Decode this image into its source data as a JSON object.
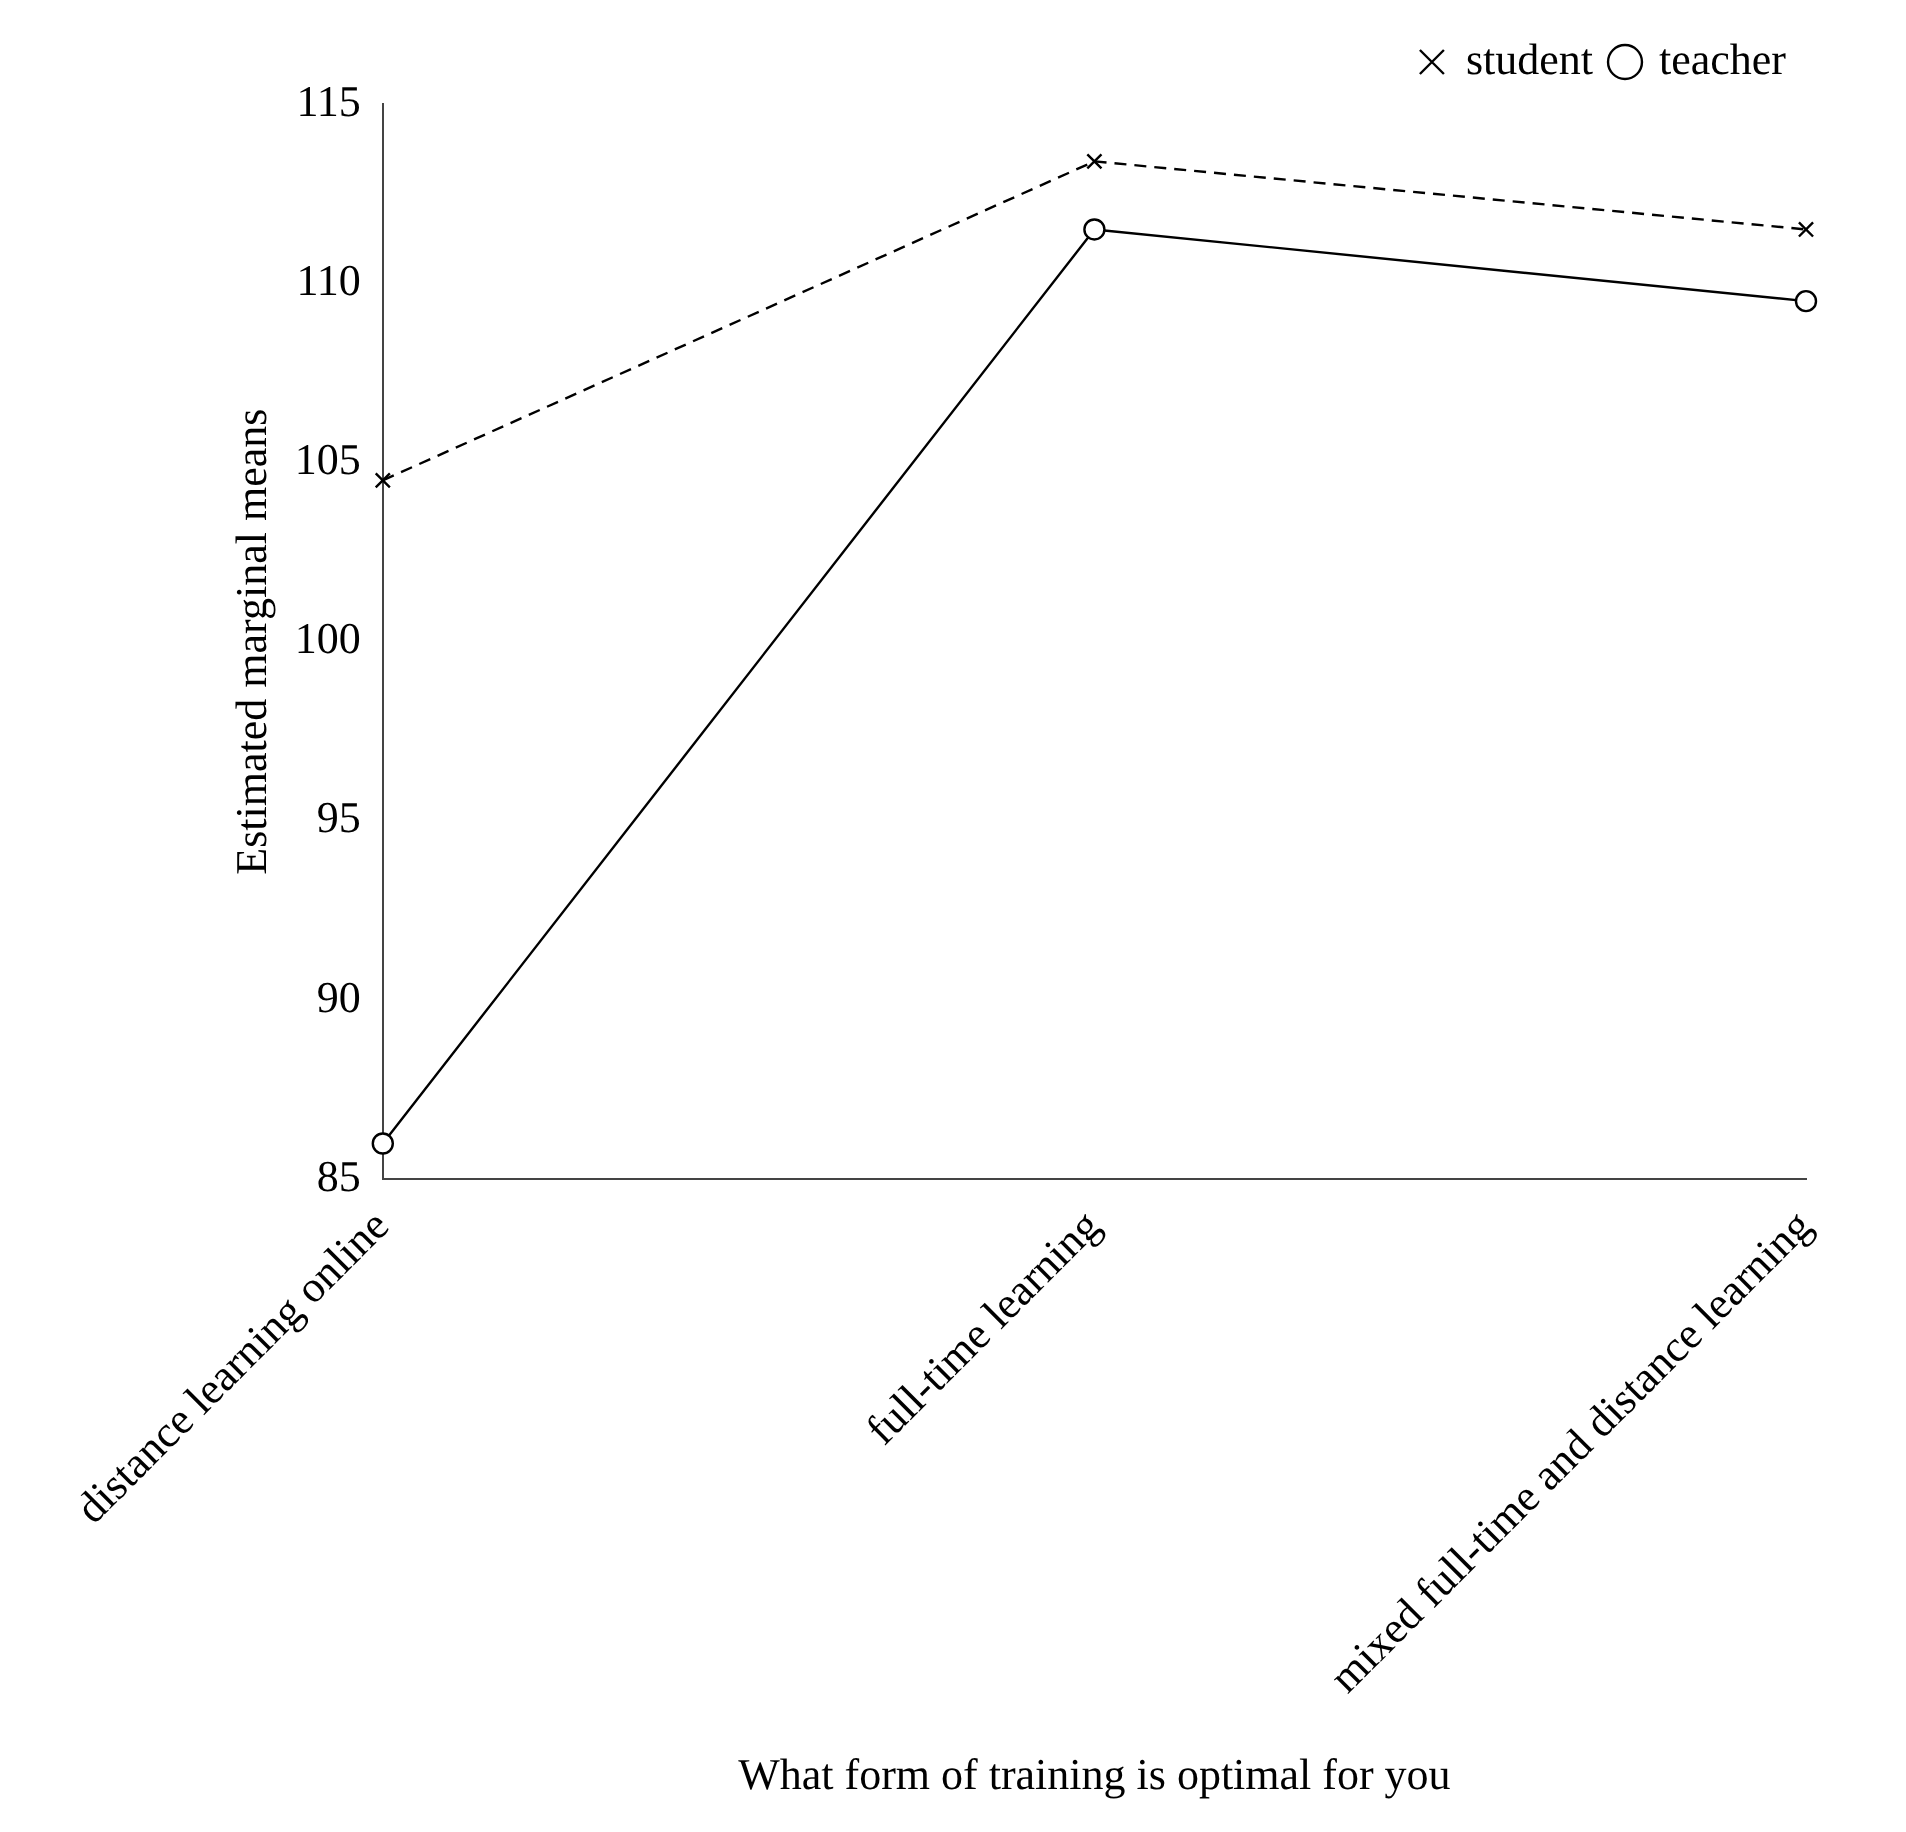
{
  "chart_data": {
    "type": "line",
    "xlabel": "What form of training is optimal for you",
    "ylabel": "Estimated marginal means",
    "categories": [
      "distance learning online",
      "full-time learning",
      "mixed full-time and distance learning"
    ],
    "series": [
      {
        "name": "student",
        "color": "#000000",
        "values": [
          104.5,
          113.4,
          111.5
        ],
        "marker": "cross",
        "line_style": "dashed"
      },
      {
        "name": "teacher",
        "color": "#000000",
        "values": [
          86,
          111.5,
          109.5
        ],
        "marker": "circle",
        "line_style": "solid"
      }
    ],
    "ylim": [
      85,
      115
    ],
    "yticks": [
      85,
      90,
      95,
      100,
      105,
      110,
      115
    ],
    "grid": false,
    "legend": "top right"
  }
}
